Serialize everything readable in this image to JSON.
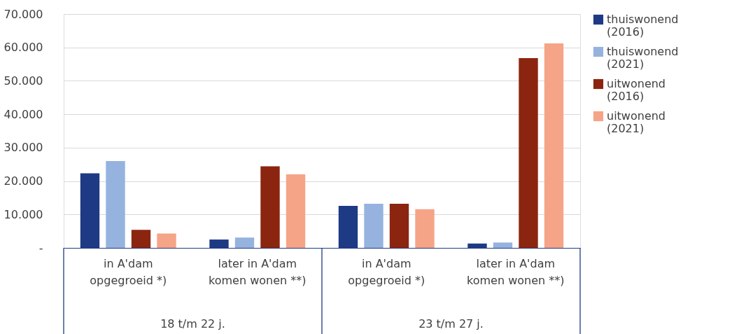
{
  "chart_data": {
    "type": "bar",
    "categories": [
      "in A'dam opgegroeid *)",
      "later in A'dam komen wonen **)",
      "in A'dam opgegroeid *)",
      "later in A'dam komen wonen **)"
    ],
    "series": [
      {
        "name": "thuiswonend (2016)",
        "color": "#1f3a84",
        "values": [
          22300,
          2500,
          12600,
          1300
        ]
      },
      {
        "name": "thuiswonend (2021)",
        "color": "#95b3de",
        "values": [
          26000,
          3100,
          13200,
          1600
        ]
      },
      {
        "name": "uitwonend (2016)",
        "color": "#8b2510",
        "values": [
          5400,
          24400,
          13200,
          56800
        ]
      },
      {
        "name": "uitwonend (2021)",
        "color": "#f5a487",
        "values": [
          4300,
          22000,
          11600,
          61200
        ]
      }
    ],
    "ylim": [
      0,
      70000
    ],
    "yticks": [
      {
        "value": 0,
        "label": "-"
      },
      {
        "value": 10000,
        "label": "10.000"
      },
      {
        "value": 20000,
        "label": "20.000"
      },
      {
        "value": 30000,
        "label": "30.000"
      },
      {
        "value": 40000,
        "label": "40.000"
      },
      {
        "value": 50000,
        "label": "50.000"
      },
      {
        "value": 60000,
        "label": "60.000"
      },
      {
        "value": 70000,
        "label": "70.000"
      }
    ],
    "annotations": [
      "18 t/m 22 j.",
      "23 t/m 27 j."
    ],
    "grid": "y",
    "legend": "right"
  }
}
